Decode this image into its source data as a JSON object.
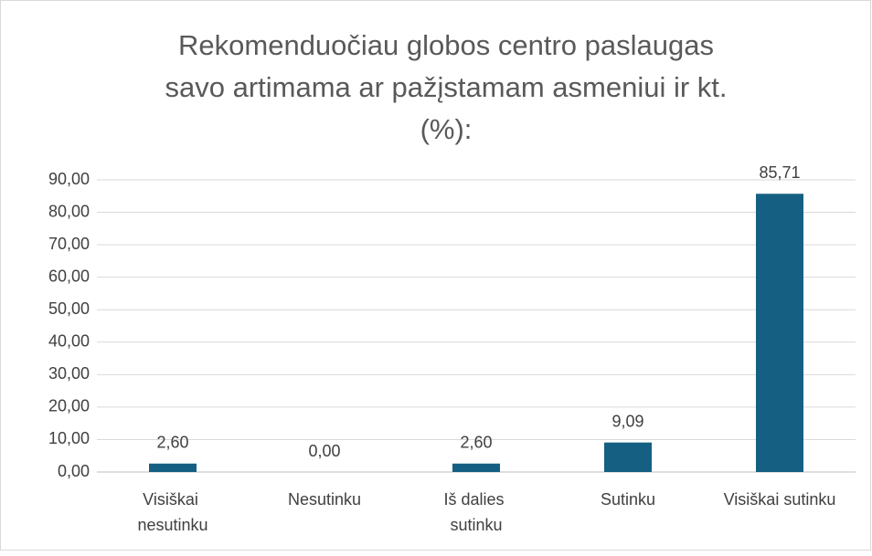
{
  "chart_data": {
    "type": "bar",
    "title": [
      "Rekomenduočiau globos centro paslaugas",
      "savo artimama ar pažįstamam asmeniui ir kt.",
      "(%):"
    ],
    "categories": [
      "Visiškai nesutinku",
      "Nesutinku",
      "Iš dalies sutinku",
      "Sutinku",
      "Visiškai sutinku"
    ],
    "values": [
      2.6,
      0,
      2.6,
      9.09,
      85.71
    ],
    "value_labels": [
      "2,60",
      "0,00",
      "2,60",
      "9,09",
      "85,71"
    ],
    "color": "#156082",
    "ylim": [
      0,
      90
    ],
    "yticks": [
      {
        "value": 0,
        "label": "0,00"
      },
      {
        "value": 10,
        "label": "10,00"
      },
      {
        "value": 20,
        "label": "20,00"
      },
      {
        "value": 30,
        "label": "30,00"
      },
      {
        "value": 40,
        "label": "40,00"
      },
      {
        "value": 50,
        "label": "50,00"
      },
      {
        "value": 60,
        "label": "60,00"
      },
      {
        "value": 70,
        "label": "70,00"
      },
      {
        "value": 80,
        "label": "80,00"
      },
      {
        "value": 90,
        "label": "90,00"
      }
    ],
    "grid": true
  }
}
